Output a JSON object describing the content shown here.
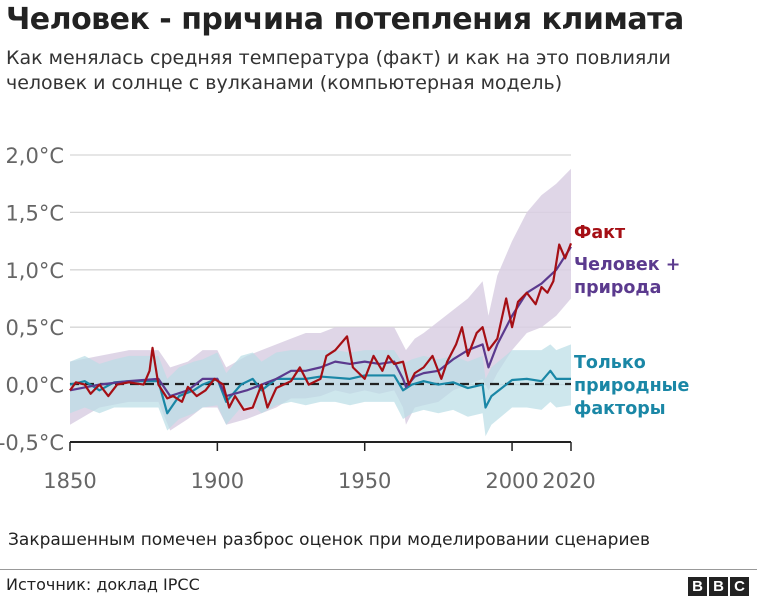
{
  "header": {
    "title": "Человек - причина потепления климата",
    "subtitle": "Как менялась средняя температура (факт) и как на это повлияли человек и солнце с вулканами (компьютерная модель)"
  },
  "footer": {
    "note": "Закрашенным помечен разброс оценок при моделировании сценариев",
    "source": "Источник: доклад IPCC",
    "logo": "BBC"
  },
  "chart_data": {
    "type": "line",
    "title": "Человек - причина потепления климата",
    "xlim": [
      1850,
      2020
    ],
    "ylim": [
      -0.5,
      2.0
    ],
    "grid": true,
    "xticks": [
      "1850",
      "1900",
      "1950",
      "2000",
      "2020"
    ],
    "xtick_values": [
      1850,
      1900,
      1950,
      2000,
      2020
    ],
    "yticks": [
      "-0,5°C",
      "0,0°C",
      "0,5°C",
      "1,0°C",
      "1,5°C",
      "2,0°C"
    ],
    "ytick_values": [
      -0.5,
      0,
      0.5,
      1.0,
      1.5,
      2.0
    ],
    "reference_line": 0,
    "legend_placement": "right, inline labels",
    "series": [
      {
        "name": "Факт",
        "color": "#a50f15",
        "x": [
          1850,
          1852,
          1855,
          1857,
          1860,
          1863,
          1866,
          1870,
          1875,
          1877,
          1878,
          1880,
          1883,
          1885,
          1888,
          1890,
          1893,
          1896,
          1899,
          1902,
          1904,
          1906,
          1909,
          1912,
          1915,
          1917,
          1920,
          1925,
          1928,
          1931,
          1935,
          1937,
          1940,
          1944,
          1946,
          1950,
          1953,
          1956,
          1958,
          1960,
          1963,
          1965,
          1967,
          1970,
          1973,
          1976,
          1978,
          1981,
          1983,
          1985,
          1988,
          1990,
          1992,
          1995,
          1998,
          2000,
          2002,
          2005,
          2008,
          2010,
          2012,
          2014,
          2016,
          2018,
          2020
        ],
        "y": [
          -0.05,
          0.02,
          0.0,
          -0.08,
          0.0,
          -0.1,
          0.0,
          0.02,
          0.0,
          0.12,
          0.32,
          0.0,
          -0.12,
          -0.1,
          -0.15,
          -0.02,
          -0.1,
          -0.05,
          0.05,
          0.0,
          -0.2,
          -0.1,
          -0.22,
          -0.2,
          0.0,
          -0.2,
          -0.03,
          0.03,
          0.15,
          0.0,
          0.05,
          0.25,
          0.3,
          0.42,
          0.15,
          0.05,
          0.25,
          0.12,
          0.25,
          0.18,
          0.2,
          0.0,
          0.1,
          0.15,
          0.25,
          0.05,
          0.2,
          0.35,
          0.5,
          0.25,
          0.45,
          0.5,
          0.3,
          0.4,
          0.75,
          0.5,
          0.72,
          0.8,
          0.7,
          0.85,
          0.8,
          0.9,
          1.22,
          1.1,
          1.23
        ]
      },
      {
        "name": "Человек + природа",
        "color": "#5b3a8e",
        "band_color": "#d9cfe3",
        "x": [
          1850,
          1860,
          1870,
          1880,
          1884,
          1890,
          1895,
          1900,
          1903,
          1910,
          1915,
          1920,
          1925,
          1930,
          1935,
          1940,
          1945,
          1950,
          1955,
          1960,
          1963,
          1964,
          1967,
          1970,
          1975,
          1980,
          1985,
          1990,
          1992,
          1995,
          2000,
          2005,
          2010,
          2015,
          2020
        ],
        "y": [
          -0.05,
          0.0,
          0.03,
          0.05,
          -0.1,
          -0.05,
          0.05,
          0.05,
          -0.1,
          -0.05,
          0.0,
          0.05,
          0.12,
          0.12,
          0.15,
          0.2,
          0.18,
          0.2,
          0.18,
          0.2,
          0.05,
          -0.02,
          0.07,
          0.1,
          0.12,
          0.22,
          0.3,
          0.35,
          0.15,
          0.35,
          0.6,
          0.8,
          0.88,
          1.0,
          1.2
        ],
        "band_low": [
          -0.35,
          -0.2,
          -0.15,
          -0.15,
          -0.4,
          -0.3,
          -0.2,
          -0.2,
          -0.35,
          -0.3,
          -0.25,
          -0.2,
          -0.12,
          -0.12,
          -0.1,
          -0.05,
          -0.08,
          -0.05,
          -0.08,
          -0.05,
          -0.2,
          -0.35,
          -0.2,
          -0.18,
          -0.15,
          -0.05,
          0.0,
          0.05,
          -0.05,
          0.1,
          0.3,
          0.45,
          0.5,
          0.6,
          0.75
        ],
        "band_high": [
          0.2,
          0.25,
          0.3,
          0.3,
          0.15,
          0.2,
          0.3,
          0.3,
          0.15,
          0.25,
          0.3,
          0.35,
          0.4,
          0.45,
          0.45,
          0.5,
          0.5,
          0.5,
          0.5,
          0.5,
          0.35,
          0.3,
          0.4,
          0.45,
          0.55,
          0.65,
          0.75,
          0.9,
          0.6,
          0.95,
          1.25,
          1.5,
          1.65,
          1.75,
          1.88
        ]
      },
      {
        "name": "Только природные факторы",
        "color": "#1a87a6",
        "band_color": "#b9dde6",
        "x": [
          1850,
          1855,
          1860,
          1865,
          1870,
          1880,
          1883,
          1887,
          1892,
          1895,
          1900,
          1903,
          1908,
          1912,
          1915,
          1920,
          1925,
          1930,
          1935,
          1940,
          1945,
          1950,
          1960,
          1963,
          1966,
          1970,
          1975,
          1980,
          1985,
          1990,
          1991,
          1993,
          2000,
          2005,
          2010,
          2013,
          2015,
          2020
        ],
        "y": [
          0.0,
          0.03,
          -0.05,
          0.02,
          0.03,
          0.03,
          -0.25,
          -0.1,
          -0.05,
          0.0,
          0.05,
          -0.15,
          0.0,
          0.05,
          -0.05,
          0.05,
          0.05,
          0.05,
          0.07,
          0.06,
          0.05,
          0.08,
          0.08,
          -0.05,
          0.0,
          0.03,
          0.0,
          0.02,
          -0.03,
          0.0,
          -0.2,
          -0.1,
          0.04,
          0.05,
          0.03,
          0.12,
          0.05,
          0.05
        ],
        "band_low": [
          -0.25,
          -0.2,
          -0.25,
          -0.2,
          -0.2,
          -0.2,
          -0.4,
          -0.3,
          -0.25,
          -0.2,
          -0.18,
          -0.35,
          -0.2,
          -0.18,
          -0.25,
          -0.18,
          -0.15,
          -0.18,
          -0.15,
          -0.15,
          -0.18,
          -0.15,
          -0.15,
          -0.3,
          -0.25,
          -0.22,
          -0.25,
          -0.22,
          -0.28,
          -0.25,
          -0.45,
          -0.35,
          -0.2,
          -0.2,
          -0.22,
          -0.15,
          -0.2,
          -0.18
        ],
        "band_high": [
          0.2,
          0.25,
          0.18,
          0.22,
          0.25,
          0.25,
          0.05,
          0.15,
          0.2,
          0.22,
          0.28,
          0.1,
          0.25,
          0.28,
          0.2,
          0.28,
          0.3,
          0.3,
          0.3,
          0.3,
          0.28,
          0.3,
          0.3,
          0.18,
          0.22,
          0.25,
          0.22,
          0.25,
          0.2,
          0.25,
          0.05,
          0.15,
          0.3,
          0.3,
          0.3,
          0.35,
          0.3,
          0.35
        ]
      }
    ],
    "labels": {
      "fact": "Факт",
      "human_1": "Человек +",
      "human_2": "природа",
      "nat_1": "Только",
      "nat_2": "природные",
      "nat_3": "факторы"
    }
  }
}
